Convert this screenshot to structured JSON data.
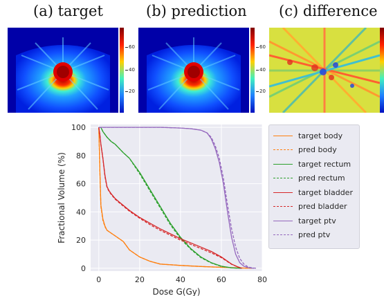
{
  "titles": {
    "target": "(a) target",
    "prediction": "(b) prediction",
    "difference": "(c) difference"
  },
  "colorbar": {
    "ticks": [
      "60",
      "40",
      "20"
    ]
  },
  "chart_data": {
    "type": "line",
    "xlabel": "Dose G(Gy)",
    "ylabel": "Fractional Volume (%)",
    "xlim": [
      -4,
      80
    ],
    "ylim": [
      -2,
      102
    ],
    "xticks": [
      0,
      20,
      40,
      60,
      80
    ],
    "yticks": [
      0,
      20,
      40,
      60,
      80,
      100
    ],
    "grid": true,
    "legend_placement": "outside-right",
    "series": [
      {
        "name": "target body",
        "color": "#ff7f0e",
        "dashed": false,
        "x": [
          0,
          0.5,
          1,
          2,
          3,
          4,
          6,
          8,
          10,
          12,
          15,
          20,
          25,
          30,
          40,
          50,
          60,
          70,
          75
        ],
        "y": [
          100,
          70,
          45,
          35,
          30,
          27,
          25,
          23,
          21,
          19,
          13,
          8,
          5,
          3,
          2,
          1.3,
          0.7,
          0.2,
          0
        ]
      },
      {
        "name": "pred body",
        "color": "#ff7f0e",
        "dashed": true,
        "x": [
          0,
          0.5,
          1,
          2,
          3,
          4,
          6,
          8,
          10,
          12,
          15,
          20,
          25,
          30,
          40,
          50,
          60,
          70,
          75
        ],
        "y": [
          100,
          69,
          44,
          34,
          29.5,
          27,
          25,
          23,
          21,
          19,
          13,
          8,
          5,
          3,
          2,
          1.3,
          0.7,
          0.2,
          0
        ]
      },
      {
        "name": "target rectum",
        "color": "#2ca02c",
        "dashed": false,
        "x": [
          0,
          1,
          2,
          4,
          6,
          8,
          10,
          12,
          15,
          20,
          25,
          30,
          35,
          40,
          45,
          50,
          55,
          60,
          65,
          70
        ],
        "y": [
          100,
          100,
          97,
          93,
          90,
          88,
          85,
          82,
          78,
          68,
          56,
          44,
          32,
          22,
          14,
          8,
          4,
          1.5,
          0.3,
          0
        ]
      },
      {
        "name": "pred rectum",
        "color": "#2ca02c",
        "dashed": true,
        "x": [
          0,
          1,
          2,
          4,
          6,
          8,
          10,
          12,
          15,
          20,
          25,
          30,
          35,
          40,
          45,
          50,
          55,
          60,
          65,
          70
        ],
        "y": [
          100,
          100,
          97,
          93,
          90,
          88,
          85,
          82,
          78,
          67,
          55,
          43,
          31,
          21,
          13.5,
          7.5,
          3.8,
          1.3,
          0.3,
          0
        ]
      },
      {
        "name": "target bladder",
        "color": "#d62728",
        "dashed": false,
        "x": [
          0,
          0.5,
          1,
          2,
          3,
          4,
          5,
          6,
          8,
          10,
          15,
          20,
          25,
          30,
          35,
          40,
          45,
          50,
          55,
          60,
          65,
          68,
          70
        ],
        "y": [
          100,
          95,
          88,
          78,
          66,
          58,
          55,
          53,
          49.5,
          47,
          41,
          36,
          32,
          28,
          24.5,
          21,
          18,
          15,
          12,
          8,
          3,
          1,
          0
        ]
      },
      {
        "name": "pred bladder",
        "color": "#d62728",
        "dashed": true,
        "x": [
          0,
          0.5,
          1,
          2,
          3,
          4,
          5,
          6,
          8,
          10,
          15,
          20,
          25,
          30,
          35,
          40,
          45,
          50,
          55,
          60,
          65,
          68,
          70
        ],
        "y": [
          100,
          95,
          88,
          78,
          65,
          57.5,
          54.5,
          52.5,
          49,
          46.5,
          40.5,
          35.5,
          31,
          27,
          23.5,
          20,
          17,
          14,
          11,
          7.5,
          2.8,
          1,
          0
        ]
      },
      {
        "name": "target ptv",
        "color": "#9467bd",
        "dashed": false,
        "x": [
          0,
          10,
          20,
          30,
          40,
          45,
          50,
          53,
          55,
          57,
          59,
          61,
          63,
          65,
          67,
          69,
          71,
          73,
          75,
          76
        ],
        "y": [
          100,
          100,
          100,
          100,
          99.5,
          99,
          98,
          96,
          92,
          85,
          75,
          60,
          40,
          22,
          10,
          4,
          1.5,
          0.5,
          0.1,
          0
        ]
      },
      {
        "name": "pred ptv",
        "color": "#9467bd",
        "dashed": true,
        "x": [
          0,
          10,
          20,
          30,
          40,
          45,
          50,
          53,
          55,
          57,
          59,
          61,
          63,
          65,
          67,
          69,
          71,
          73,
          75,
          77
        ],
        "y": [
          100,
          100,
          100,
          100,
          99.5,
          99,
          98,
          96,
          93,
          87,
          78,
          64,
          45,
          28,
          15,
          7,
          3,
          1,
          0.3,
          0
        ]
      }
    ]
  }
}
